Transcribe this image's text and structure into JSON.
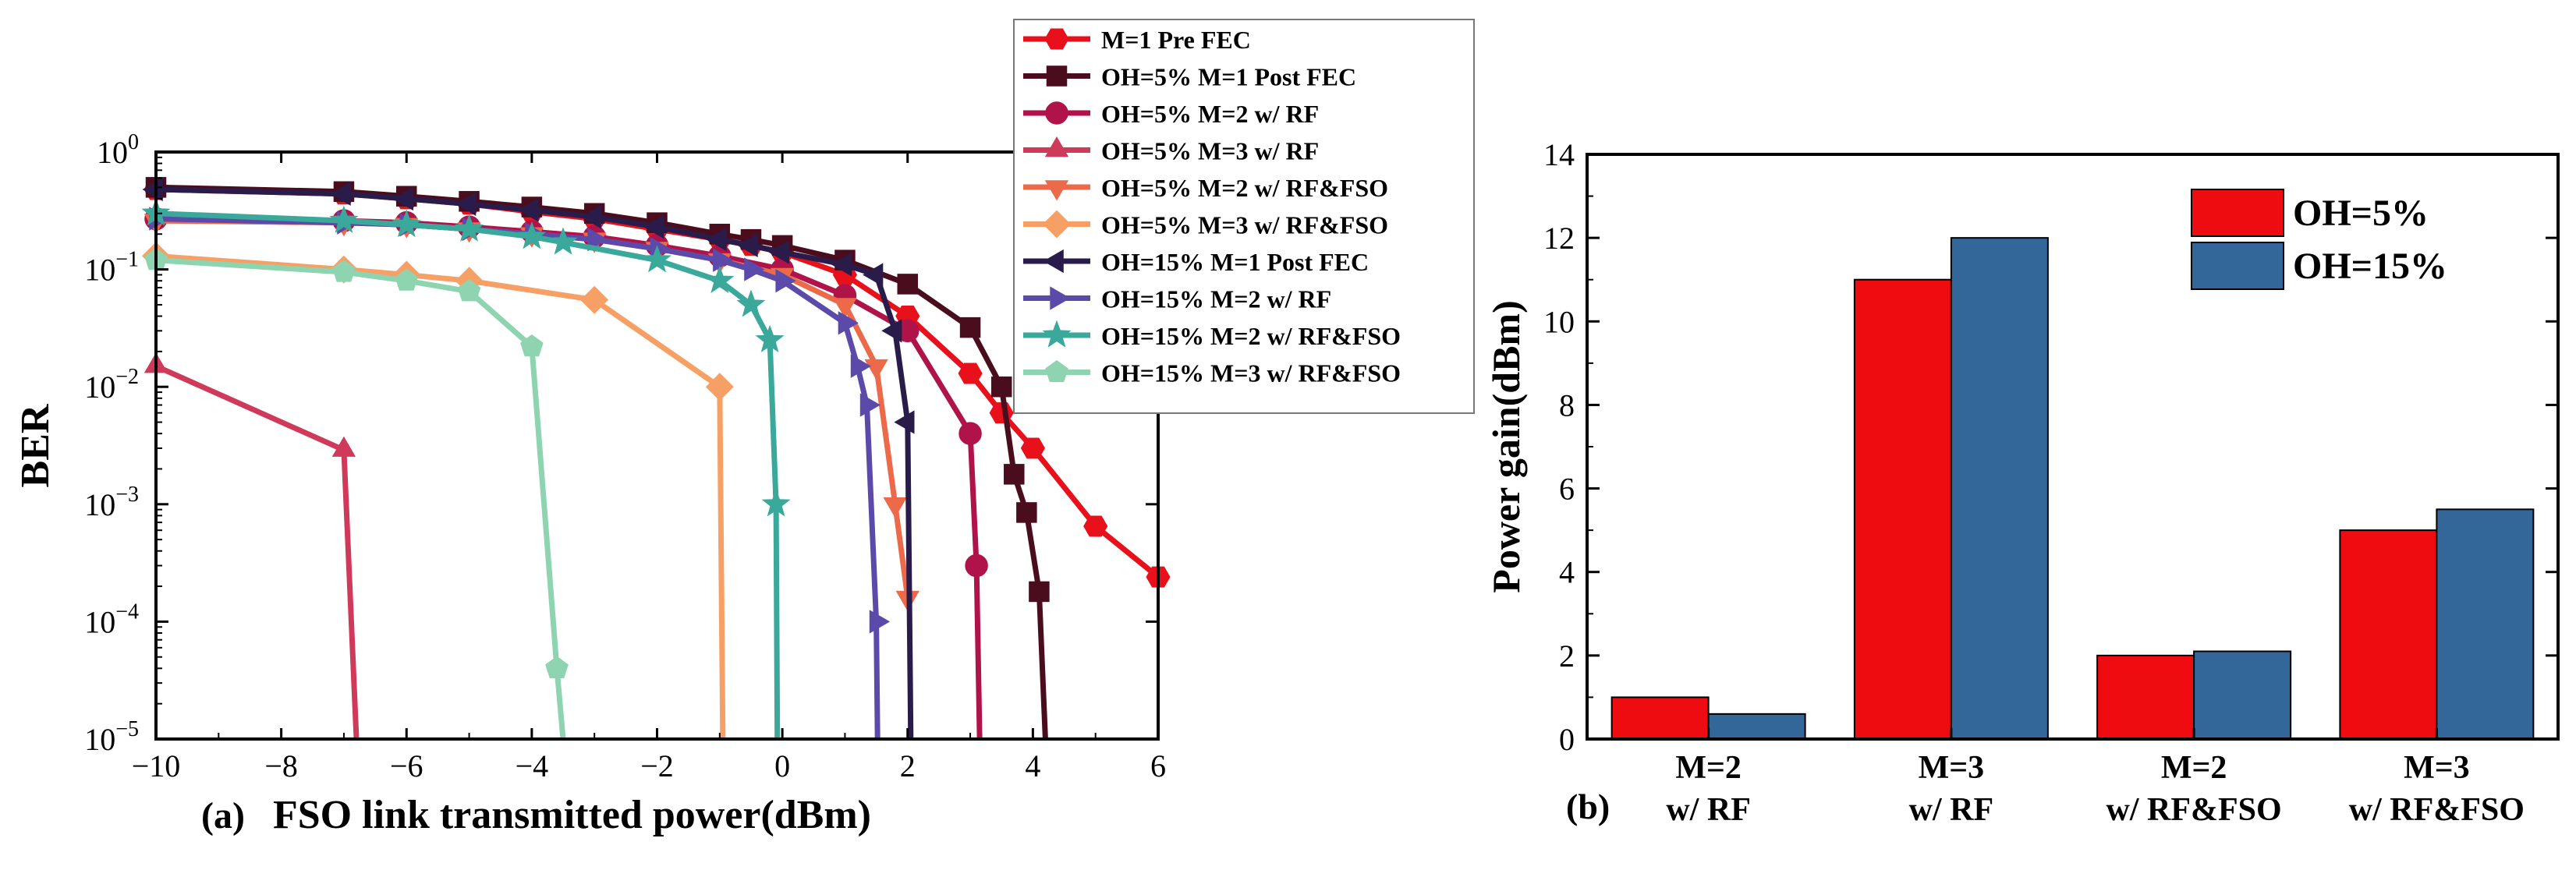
{
  "chart_data": [
    {
      "type": "line",
      "panel_label": "(a)",
      "xlabel": "FSO link transmitted power(dBm)",
      "ylabel": "BER",
      "xlim": [
        -10,
        6
      ],
      "ylim_log10": [
        -5,
        0
      ],
      "xticks": [
        -10,
        -8,
        -6,
        -4,
        -2,
        0,
        2,
        4,
        6
      ],
      "xtick_labels": [
        "−10",
        "−8",
        "−6",
        "−4",
        "−2",
        "0",
        "2",
        "4",
        "6"
      ],
      "yticks_exp": [
        0,
        -1,
        -2,
        -3,
        -4,
        -5
      ],
      "ytick_base": "10",
      "ytick_exponents": [
        "0",
        "−1",
        "−2",
        "−3",
        "−4",
        "−5"
      ],
      "legend_position": "top-right, outside plot area",
      "series": [
        {
          "name": "M=1 Pre FEC",
          "color": "#e8101a",
          "marker": "hexagon",
          "x": [
            -10,
            -7,
            -6,
            -5,
            -4,
            -3,
            -2,
            -1,
            -0.5,
            0,
            1,
            2,
            3,
            3.5,
            4,
            5,
            6
          ],
          "y": [
            0.48,
            0.44,
            0.4,
            0.36,
            0.31,
            0.27,
            0.22,
            0.18,
            0.16,
            0.14,
            0.09,
            0.04,
            0.013,
            0.006,
            0.003,
            0.00065,
            0.00024
          ]
        },
        {
          "name": "OH=5% M=1 Post FEC",
          "color": "#4a0d1e",
          "marker": "square",
          "x": [
            -10,
            -7,
            -6,
            -5,
            -4,
            -3,
            -2,
            -1,
            -0.5,
            0,
            1,
            2,
            3,
            3.5,
            3.7,
            3.9,
            4.1,
            4.2
          ],
          "y": [
            0.5,
            0.46,
            0.42,
            0.38,
            0.34,
            0.3,
            0.25,
            0.2,
            0.18,
            0.16,
            0.12,
            0.075,
            0.032,
            0.01,
            0.0018,
            0.00085,
            0.00018,
            1e-05
          ]
        },
        {
          "name": "OH=5% M=2 w/ RF",
          "color": "#b0124a",
          "marker": "circle",
          "x": [
            -10,
            -7,
            -6,
            -5,
            -4,
            -3,
            -2,
            -1,
            0,
            1,
            2,
            3,
            3.1,
            3.15
          ],
          "y": [
            0.27,
            0.26,
            0.25,
            0.23,
            0.21,
            0.19,
            0.16,
            0.13,
            0.1,
            0.06,
            0.03,
            0.004,
            0.0003,
            1e-05
          ]
        },
        {
          "name": "OH=5% M=3 w/ RF",
          "color": "#d03a5a",
          "marker": "triangle-up",
          "x": [
            -10,
            -7,
            -6.8
          ],
          "y": [
            0.015,
            0.0029,
            1e-05
          ]
        },
        {
          "name": "OH=5% M=2 w/ RF&FSO",
          "color": "#ec6a4a",
          "marker": "triangle-down",
          "x": [
            -10,
            -7,
            -6,
            -5,
            -4,
            -3,
            -2,
            -1,
            0,
            1,
            1.5,
            1.8,
            2
          ],
          "y": [
            0.26,
            0.25,
            0.24,
            0.22,
            0.2,
            0.18,
            0.15,
            0.12,
            0.09,
            0.05,
            0.015,
            0.001,
            0.00016
          ]
        },
        {
          "name": "OH=5% M=3 w/ RF&FSO",
          "color": "#f7a066",
          "marker": "diamond",
          "x": [
            -10,
            -7,
            -6,
            -5,
            -3,
            -1,
            -0.95
          ],
          "y": [
            0.13,
            0.1,
            0.09,
            0.08,
            0.055,
            0.01,
            1e-05
          ]
        },
        {
          "name": "OH=15% M=1 Post FEC",
          "color": "#2a1c4a",
          "marker": "triangle-left",
          "x": [
            -10,
            -7,
            -6,
            -5,
            -4,
            -3,
            -2,
            -1,
            -0.5,
            0,
            1,
            1.5,
            1.8,
            2,
            2.05
          ],
          "y": [
            0.48,
            0.44,
            0.4,
            0.36,
            0.32,
            0.28,
            0.23,
            0.18,
            0.16,
            0.14,
            0.11,
            0.09,
            0.03,
            0.005,
            1e-05
          ]
        },
        {
          "name": "OH=15% M=2 w/ RF",
          "color": "#5b4aaa",
          "marker": "triangle-right",
          "x": [
            -10,
            -7,
            -6,
            -5,
            -4,
            -3,
            -2,
            -1,
            -0.5,
            0,
            1,
            1.2,
            1.35,
            1.5,
            1.52
          ],
          "y": [
            0.27,
            0.25,
            0.24,
            0.22,
            0.2,
            0.18,
            0.15,
            0.12,
            0.1,
            0.08,
            0.035,
            0.015,
            0.007,
            0.0001,
            1e-05
          ]
        },
        {
          "name": "OH=15% M=2 w/ RF&FSO",
          "color": "#3aa89a",
          "marker": "star",
          "x": [
            -10,
            -7,
            -6,
            -5,
            -4,
            -3.5,
            -2,
            -1,
            -0.5,
            -0.2,
            -0.1,
            -0.08
          ],
          "y": [
            0.3,
            0.26,
            0.24,
            0.22,
            0.19,
            0.17,
            0.12,
            0.08,
            0.05,
            0.025,
            0.001,
            1e-05
          ]
        },
        {
          "name": "OH=15% M=3 w/ RF&FSO",
          "color": "#8ed4b0",
          "marker": "pentagon",
          "x": [
            -10,
            -7,
            -6,
            -5,
            -4,
            -3.6,
            -3.5
          ],
          "y": [
            0.12,
            0.095,
            0.08,
            0.065,
            0.022,
            4e-05,
            1e-05
          ]
        }
      ]
    },
    {
      "type": "bar",
      "panel_label": "(b)",
      "xlabel": "",
      "ylabel": "Power gain(dBm)",
      "ylim": [
        0,
        14
      ],
      "yticks": [
        0,
        2,
        4,
        6,
        8,
        10,
        12,
        14
      ],
      "categories": [
        [
          "M=2",
          "w/ RF"
        ],
        [
          "M=3",
          "w/ RF"
        ],
        [
          "M=2",
          "w/ RF&FSO"
        ],
        [
          "M=3",
          "w/ RF&FSO"
        ]
      ],
      "legend_position": "top-right",
      "series": [
        {
          "name": "OH=5%",
          "color": "#ee0c10",
          "values": [
            1.0,
            11.0,
            2.0,
            5.0
          ]
        },
        {
          "name": "OH=15%",
          "color": "#336699",
          "values": [
            0.6,
            12.0,
            2.1,
            5.5
          ]
        }
      ]
    }
  ]
}
